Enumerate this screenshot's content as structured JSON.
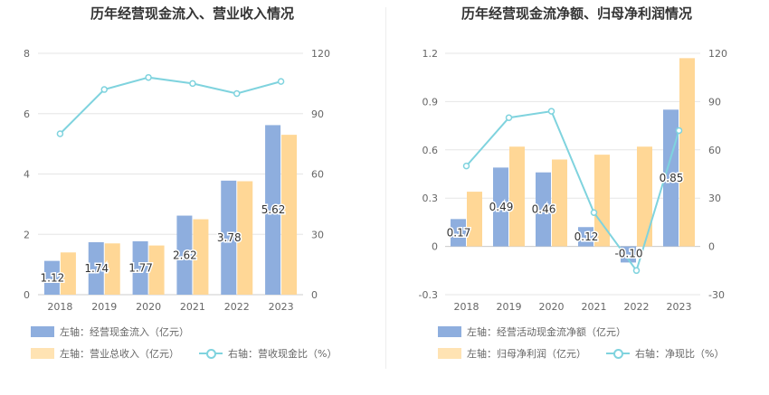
{
  "titles": {
    "left": "历年经营现金流入、营业收入情况",
    "right": "历年经营现金流净额、归母净利润情况"
  },
  "legend": {
    "left": {
      "bar1": "左轴：经营现金流入（亿元）",
      "bar2": "左轴：营业总收入（亿元）",
      "line": "右轴：营收现金比（%）"
    },
    "right": {
      "bar1": "左轴：经营活动现金流净额（亿元）",
      "bar2": "左轴：归母净利润（亿元）",
      "line": "右轴：净现比（%）"
    }
  },
  "colors": {
    "bar1": "#8eaede",
    "bar2": "#ffd796",
    "line": "#7fd3de"
  },
  "chart_data": [
    {
      "type": "bar",
      "title": "历年经营现金流入、营业收入情况",
      "categories": [
        "2018",
        "2019",
        "2020",
        "2021",
        "2022",
        "2023"
      ],
      "series": [
        {
          "name": "左轴：经营现金流入（亿元）",
          "axis": "left",
          "type": "bar",
          "values": [
            1.12,
            1.74,
            1.77,
            2.62,
            3.78,
            5.62
          ]
        },
        {
          "name": "左轴：营业总收入（亿元）",
          "axis": "left",
          "type": "bar",
          "values": [
            1.4,
            1.7,
            1.63,
            2.5,
            3.76,
            5.3
          ]
        },
        {
          "name": "右轴：营收现金比（%）",
          "axis": "right",
          "type": "line",
          "values": [
            80,
            102,
            108,
            105,
            100,
            106
          ]
        }
      ],
      "data_labels": [
        "1.12",
        "1.74",
        "1.77",
        "2.62",
        "3.78",
        "5.62"
      ],
      "y_left": {
        "ylim": [
          0,
          8
        ],
        "ticks": [
          "0",
          "2",
          "4",
          "6",
          "8"
        ]
      },
      "y_right": {
        "ylim": [
          0,
          120
        ],
        "ticks": [
          "0",
          "30",
          "60",
          "90",
          "120"
        ]
      },
      "grid": true,
      "legend_position": "bottom"
    },
    {
      "type": "bar",
      "title": "历年经营现金流净额、归母净利润情况",
      "categories": [
        "2018",
        "2019",
        "2020",
        "2021",
        "2022",
        "2023"
      ],
      "series": [
        {
          "name": "左轴：经营活动现金流净额（亿元）",
          "axis": "left",
          "type": "bar",
          "values": [
            0.17,
            0.49,
            0.46,
            0.12,
            -0.1,
            0.85
          ]
        },
        {
          "name": "左轴：归母净利润（亿元）",
          "axis": "left",
          "type": "bar",
          "values": [
            0.34,
            0.62,
            0.54,
            0.57,
            0.62,
            1.17
          ]
        },
        {
          "name": "右轴：净现比（%）",
          "axis": "right",
          "type": "line",
          "values": [
            50,
            80,
            84,
            21,
            -15,
            72
          ]
        }
      ],
      "data_labels": [
        "0.17",
        "0.49",
        "0.46",
        "0.12",
        "-0.10",
        "0.85"
      ],
      "y_left": {
        "ylim": [
          -0.3,
          1.2
        ],
        "ticks": [
          "-0.3",
          "0",
          "0.3",
          "0.6",
          "0.9",
          "1.2"
        ]
      },
      "y_right": {
        "ylim": [
          -30,
          120
        ],
        "ticks": [
          "-30",
          "0",
          "30",
          "60",
          "90",
          "120"
        ]
      },
      "grid": true,
      "legend_position": "bottom"
    }
  ]
}
